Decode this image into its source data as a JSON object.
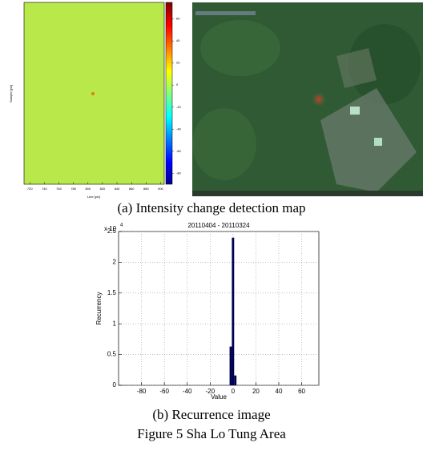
{
  "figure_a": {
    "caption": "(a) Intensity change detection map",
    "map": {
      "x_label": "Line [pix]",
      "y_label": "Sample [pix]",
      "xlim": [
        712,
        905
      ],
      "xticks": [
        720,
        740,
        760,
        780,
        800,
        820,
        840,
        860,
        880,
        900
      ],
      "colorbar_lim": [
        -90,
        75
      ],
      "colorbar_ticks": [
        60,
        40,
        20,
        0,
        -20,
        -40,
        -60,
        -80
      ]
    }
  },
  "chart_data": {
    "type": "histogram",
    "title": "20110404 - 20110324",
    "x_label": "Value",
    "y_label": "Recurrency",
    "y_scale_base": "x 10",
    "y_scale_exponent": 4,
    "bins": [
      -3,
      -1,
      1,
      3
    ],
    "values": [
      0.63,
      2.4,
      0.16
    ],
    "color": "#000050",
    "xlim": [
      -100,
      75
    ],
    "xticks": [
      -80,
      -60,
      -40,
      -20,
      0,
      20,
      40,
      60
    ],
    "ylim": [
      0,
      2.5
    ],
    "yticks": [
      0,
      0.5,
      1,
      1.5,
      2,
      2.5
    ],
    "grid": true
  },
  "caption_b": "(b) Recurrence image",
  "figure_caption": "Figure 5 Sha Lo Tung Area"
}
